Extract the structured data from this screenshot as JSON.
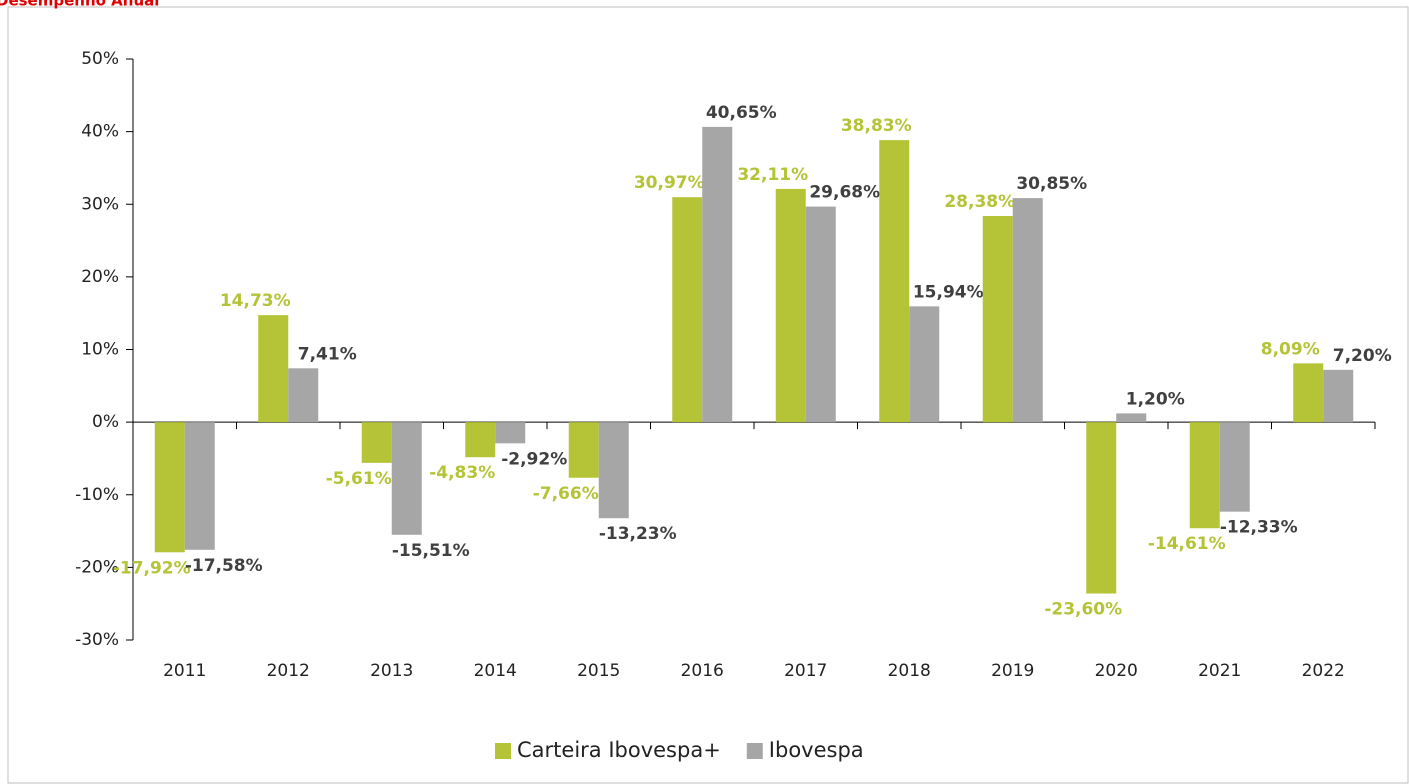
{
  "chart_data": {
    "type": "bar",
    "title": "Desempenho Anual",
    "categories": [
      "2011",
      "2012",
      "2013",
      "2014",
      "2015",
      "2016",
      "2017",
      "2018",
      "2019",
      "2020",
      "2021",
      "2022"
    ],
    "series": [
      {
        "name": "Carteira Ibovespa+",
        "color": "#b5c337",
        "values": [
          -17.92,
          14.73,
          -5.61,
          -4.83,
          -7.66,
          30.97,
          32.11,
          38.83,
          28.38,
          -23.6,
          -14.61,
          8.09
        ],
        "value_labels": [
          "-17,92%",
          "14,73%",
          "-5,61%",
          "-4,83%",
          "-7,66%",
          "30,97%",
          "32,11%",
          "38,83%",
          "28,38%",
          "-23,60%",
          "-14,61%",
          "8,09%"
        ]
      },
      {
        "name": "Ibovespa",
        "color": "#a6a6a6",
        "values": [
          -17.58,
          7.41,
          -15.51,
          -2.92,
          -13.23,
          40.65,
          29.68,
          15.94,
          30.85,
          1.2,
          -12.33,
          7.2
        ],
        "value_labels": [
          "-17,58%",
          "7,41%",
          "-15,51%",
          "-2,92%",
          "-13,23%",
          "40,65%",
          "29,68%",
          "15,94%",
          "30,85%",
          "1,20%",
          "-12,33%",
          "7,20%"
        ]
      }
    ],
    "ylim": [
      -30,
      50
    ],
    "yticks": [
      {
        "value": -30,
        "label": "-30%"
      },
      {
        "value": -20,
        "label": "-20%"
      },
      {
        "value": -10,
        "label": "-10%"
      },
      {
        "value": 0,
        "label": "0%"
      },
      {
        "value": 10,
        "label": "10%"
      },
      {
        "value": 20,
        "label": "20%"
      },
      {
        "value": 30,
        "label": "30%"
      },
      {
        "value": 40,
        "label": "40%"
      },
      {
        "value": 50,
        "label": "50%"
      }
    ],
    "legend": "bottom"
  }
}
